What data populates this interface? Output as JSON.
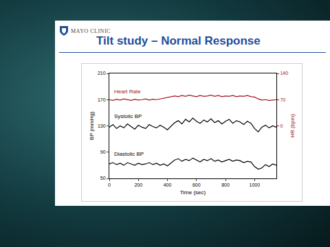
{
  "logo": "MAYO CLINIC",
  "chart_data": {
    "type": "line",
    "title": "Tilt study – Normal Response",
    "x_label": "Time (sec)",
    "y_label": "BP (mmHg)",
    "y2_label": "HR (bpm)",
    "x": [
      0,
      25,
      50,
      75,
      100,
      125,
      150,
      175,
      200,
      225,
      250,
      275,
      300,
      325,
      350,
      375,
      400,
      425,
      450,
      475,
      500,
      525,
      550,
      575,
      600,
      625,
      650,
      675,
      700,
      725,
      750,
      775,
      800,
      825,
      850,
      875,
      900,
      925,
      950,
      975,
      1000,
      1025,
      1050,
      1075,
      1100,
      1125,
      1150
    ],
    "xlim": [
      0,
      1150
    ],
    "xticks": [
      0,
      200,
      400,
      600,
      800,
      1000
    ],
    "ylim": [
      50,
      210
    ],
    "yticks": [
      50,
      90,
      130,
      170,
      210
    ],
    "y2lim": [
      -140,
      140
    ],
    "y2ticks": [
      0,
      70,
      140
    ],
    "grid": false,
    "series": [
      {
        "name": "Heart Rate",
        "color": "#a3121f",
        "axis": "y2",
        "values": [
          70,
          68,
          71,
          69,
          72,
          70,
          68,
          71,
          69,
          70,
          72,
          69,
          71,
          70,
          72,
          74,
          76,
          79,
          80,
          78,
          81,
          79,
          82,
          80,
          78,
          81,
          79,
          80,
          82,
          79,
          81,
          78,
          80,
          79,
          81,
          78,
          80,
          79,
          81,
          78,
          77,
          72,
          69,
          70,
          68,
          69,
          70
        ]
      },
      {
        "name": "Systolic BP",
        "color": "#000000",
        "values": [
          128,
          132,
          126,
          130,
          127,
          133,
          129,
          125,
          131,
          128,
          126,
          132,
          129,
          127,
          131,
          128,
          124,
          130,
          135,
          138,
          133,
          140,
          136,
          142,
          137,
          134,
          139,
          136,
          141,
          135,
          138,
          133,
          137,
          140,
          134,
          138,
          136,
          132,
          137,
          134,
          126,
          121,
          128,
          131,
          127,
          130,
          128
        ]
      },
      {
        "name": "Diastolic BP",
        "color": "#000000",
        "values": [
          72,
          74,
          71,
          73,
          70,
          74,
          72,
          70,
          73,
          71,
          72,
          74,
          71,
          73,
          70,
          72,
          69,
          74,
          78,
          80,
          76,
          79,
          77,
          81,
          78,
          75,
          79,
          77,
          80,
          76,
          78,
          75,
          77,
          79,
          76,
          78,
          77,
          74,
          76,
          75,
          68,
          64,
          66,
          71,
          68,
          72,
          70
        ]
      }
    ]
  }
}
